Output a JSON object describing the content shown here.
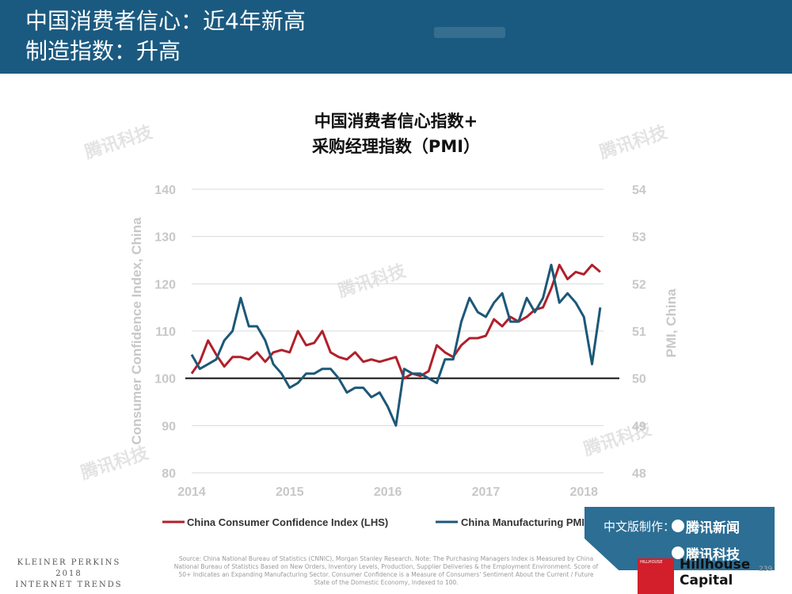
{
  "header": {
    "title_line1": "中国消费者信心：近4年新高",
    "title_line2": "制造指数：升高"
  },
  "chart_data": {
    "type": "line",
    "title_lines": [
      "中国消费者信心指数+",
      "采购经理指数（PMI）"
    ],
    "ylabel_left": "Consumer Confidence Index, China",
    "ylabel_right": "PMI, China",
    "ylim_left": [
      80,
      140
    ],
    "ylim_right": [
      48,
      54
    ],
    "yticks_left": [
      80,
      90,
      100,
      110,
      120,
      130,
      140
    ],
    "yticks_right": [
      48,
      49,
      50,
      51,
      52,
      53,
      54
    ],
    "xlim": [
      2014.0,
      2018.2
    ],
    "xticks": [
      2014,
      2015,
      2016,
      2017,
      2018
    ],
    "reference_line_left": 100,
    "grid": "horizontal",
    "legend_position": "bottom",
    "series": [
      {
        "name": "China Consumer Confidence Index (LHS)",
        "axis": "left",
        "color": "#b0202a",
        "x": [
          2014.0,
          2014.083,
          2014.167,
          2014.25,
          2014.333,
          2014.417,
          2014.5,
          2014.583,
          2014.667,
          2014.75,
          2014.833,
          2014.917,
          2015.0,
          2015.083,
          2015.167,
          2015.25,
          2015.333,
          2015.417,
          2015.5,
          2015.583,
          2015.667,
          2015.75,
          2015.833,
          2015.917,
          2016.0,
          2016.083,
          2016.167,
          2016.25,
          2016.333,
          2016.417,
          2016.5,
          2016.583,
          2016.667,
          2016.75,
          2016.833,
          2016.917,
          2017.0,
          2017.083,
          2017.167,
          2017.25,
          2017.333,
          2017.417,
          2017.5,
          2017.583,
          2017.667,
          2017.75,
          2017.833,
          2017.917,
          2018.0,
          2018.083,
          2018.167
        ],
        "values": [
          101,
          103.5,
          108,
          105,
          102.5,
          104.5,
          104.5,
          104,
          105.5,
          103.5,
          105.5,
          106,
          105.5,
          110,
          107,
          107.5,
          110,
          105.5,
          104.5,
          104,
          105.5,
          103.5,
          104,
          103.5,
          104,
          104.5,
          100,
          101,
          100.5,
          101.5,
          107,
          105.5,
          104.5,
          107,
          108.5,
          108.5,
          109,
          112.5,
          111,
          113,
          112,
          113,
          114.5,
          115,
          119,
          124,
          121,
          122.5,
          122,
          124,
          122.5
        ]
      },
      {
        "name": "China Manufacturing PMI (RHS)",
        "axis": "right",
        "color": "#1c5878",
        "x": [
          2014.0,
          2014.083,
          2014.167,
          2014.25,
          2014.333,
          2014.417,
          2014.5,
          2014.583,
          2014.667,
          2014.75,
          2014.833,
          2014.917,
          2015.0,
          2015.083,
          2015.167,
          2015.25,
          2015.333,
          2015.417,
          2015.5,
          2015.583,
          2015.667,
          2015.75,
          2015.833,
          2015.917,
          2016.0,
          2016.083,
          2016.167,
          2016.25,
          2016.333,
          2016.417,
          2016.5,
          2016.583,
          2016.667,
          2016.75,
          2016.833,
          2016.917,
          2017.0,
          2017.083,
          2017.167,
          2017.25,
          2017.333,
          2017.417,
          2017.5,
          2017.583,
          2017.667,
          2017.75,
          2017.833,
          2017.917,
          2018.0,
          2018.083,
          2018.167
        ],
        "values": [
          50.5,
          50.2,
          50.3,
          50.4,
          50.8,
          51.0,
          51.7,
          51.1,
          51.1,
          50.8,
          50.3,
          50.1,
          49.8,
          49.9,
          50.1,
          50.1,
          50.2,
          50.2,
          50.0,
          49.7,
          49.8,
          49.8,
          49.6,
          49.7,
          49.4,
          49.0,
          50.2,
          50.1,
          50.1,
          50.0,
          49.9,
          50.4,
          50.4,
          51.2,
          51.7,
          51.4,
          51.3,
          51.6,
          51.8,
          51.2,
          51.2,
          51.7,
          51.4,
          51.7,
          52.4,
          51.6,
          51.8,
          51.6,
          51.3,
          50.3,
          51.5
        ]
      }
    ]
  },
  "watermark": "腾讯科技",
  "footer": {
    "brand_lines": [
      "KLEINER PERKINS",
      "2018",
      "INTERNET TRENDS"
    ],
    "source": "Source: China National Bureau of Statistics (CNNIC), Morgan Stanley Research. Note: The Purchasing Managers Index is Measured by China National Bureau of Statistics Based on New Orders, Inventory Levels, Production, Supplier Deliveries & the Employment Environment. Score of 50+ Indicates an Expanding Manufacturing Sector. Consumer Confidence is a Measure of Consumers' Sentiment About the Current / Future State of the Domestic Economy, Indexed to 100.",
    "page_number": "239",
    "badge_prefix": "中文版制作：",
    "badge_line1": "腾讯新闻",
    "badge_line2": "腾讯科技",
    "hillhouse_small": "HILLHOUSE",
    "hillhouse_line1": "Hillhouse",
    "hillhouse_line2": "Capital"
  }
}
